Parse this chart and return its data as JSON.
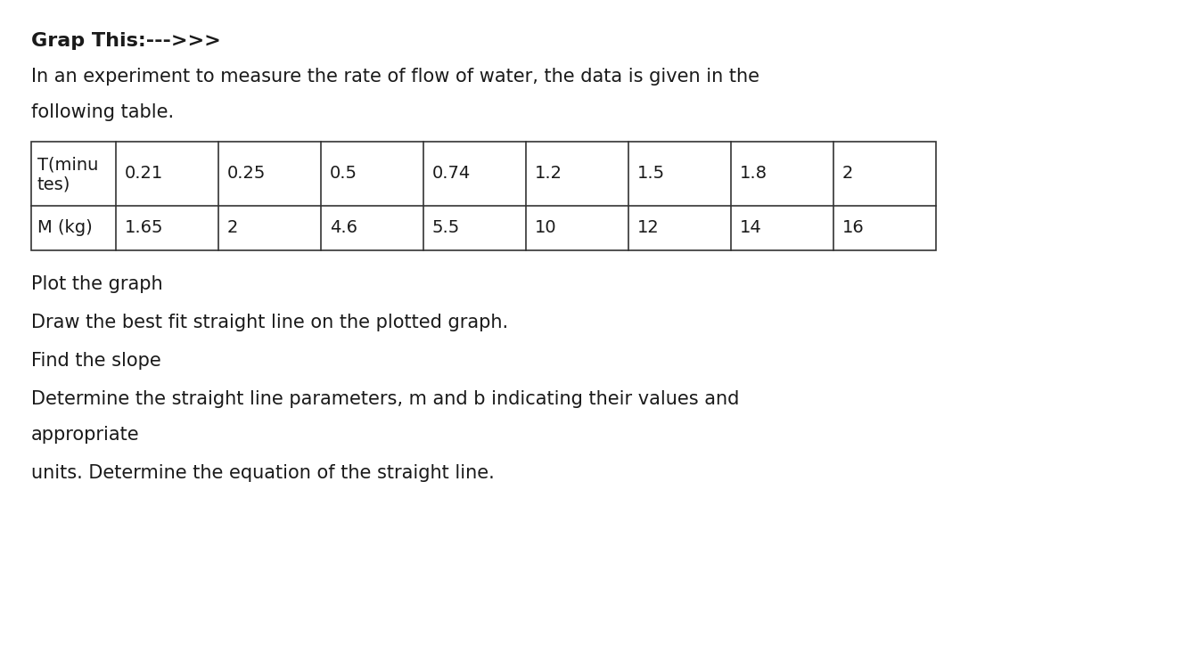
{
  "heading": "Grap This:--->>>",
  "intro_line1": "In an experiment to measure the rate of flow of water, the data is given in the",
  "intro_line2": "following table.",
  "row1_label_line1": "T(minu",
  "row1_label_line2": "tes)",
  "row1_values": [
    "0.21",
    "0.25",
    "0.5",
    "0.74",
    "1.2",
    "1.5",
    "1.8",
    "2"
  ],
  "row2_label": "M (kg)",
  "row2_values": [
    "1.65",
    "2",
    "4.6",
    "5.5",
    "10",
    "12",
    "14",
    "16"
  ],
  "bullet1": "Plot the graph",
  "bullet2": "Draw the best fit straight line on the plotted graph.",
  "bullet3": "Find the slope",
  "bullet4_line1": "Determine the straight line parameters, m and b indicating their values and",
  "bullet4_line2": "appropriate",
  "bullet5": "units. Determine the equation of the straight line.",
  "bg_color": "#ffffff",
  "text_color": "#1a1a1a",
  "table_border_color": "#333333",
  "font_size_heading": 16,
  "font_size_body": 15,
  "font_size_table": 14
}
